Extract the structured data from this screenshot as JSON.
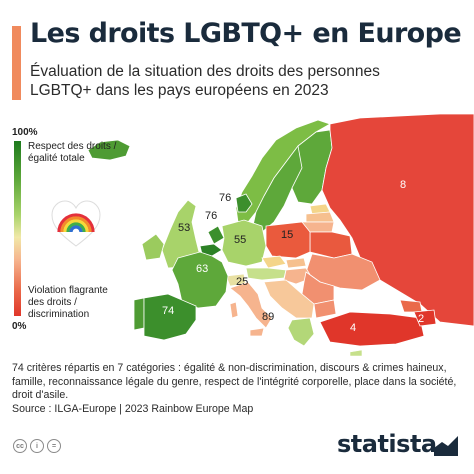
{
  "header": {
    "title": "Les droits LGBTQ+ en Europe",
    "subtitle": "Évaluation de la situation des droits des personnes LGBTQ+ dans les pays européens en 2023"
  },
  "legend": {
    "top_pct": "100%",
    "top_label_line1": "Respect des droits /",
    "top_label_line2": "égalité totale",
    "bottom_label_line1": "Violation flagrante",
    "bottom_label_line2": "des droits /",
    "bottom_label_line3": "discrimination",
    "bottom_pct": "0%"
  },
  "map_labels": {
    "denmark": "76",
    "netherlands": "76",
    "uk": "53",
    "germany": "55",
    "poland": "15",
    "france": "63",
    "spain": "74",
    "italy": "25",
    "greece": "89",
    "russia": "8",
    "turkey": "4",
    "azerbaijan": "2"
  },
  "footer": {
    "note": "74 critères répartis en 7 catégories : égalité & non-discrimination, discours & crimes haineux, famille, reconnaissance légale du genre, respect de l'intégrité corporelle, place dans la société, droit d'asile.",
    "source": "Source : ILGA-Europe | 2023 Rainbow Europe Map",
    "brand": "statista"
  },
  "colors": {
    "title": "#1a2b3c",
    "accent": "#f08a5d",
    "sea": "#ffffff",
    "high": "#1d7a1d",
    "low": "#e0362a"
  }
}
